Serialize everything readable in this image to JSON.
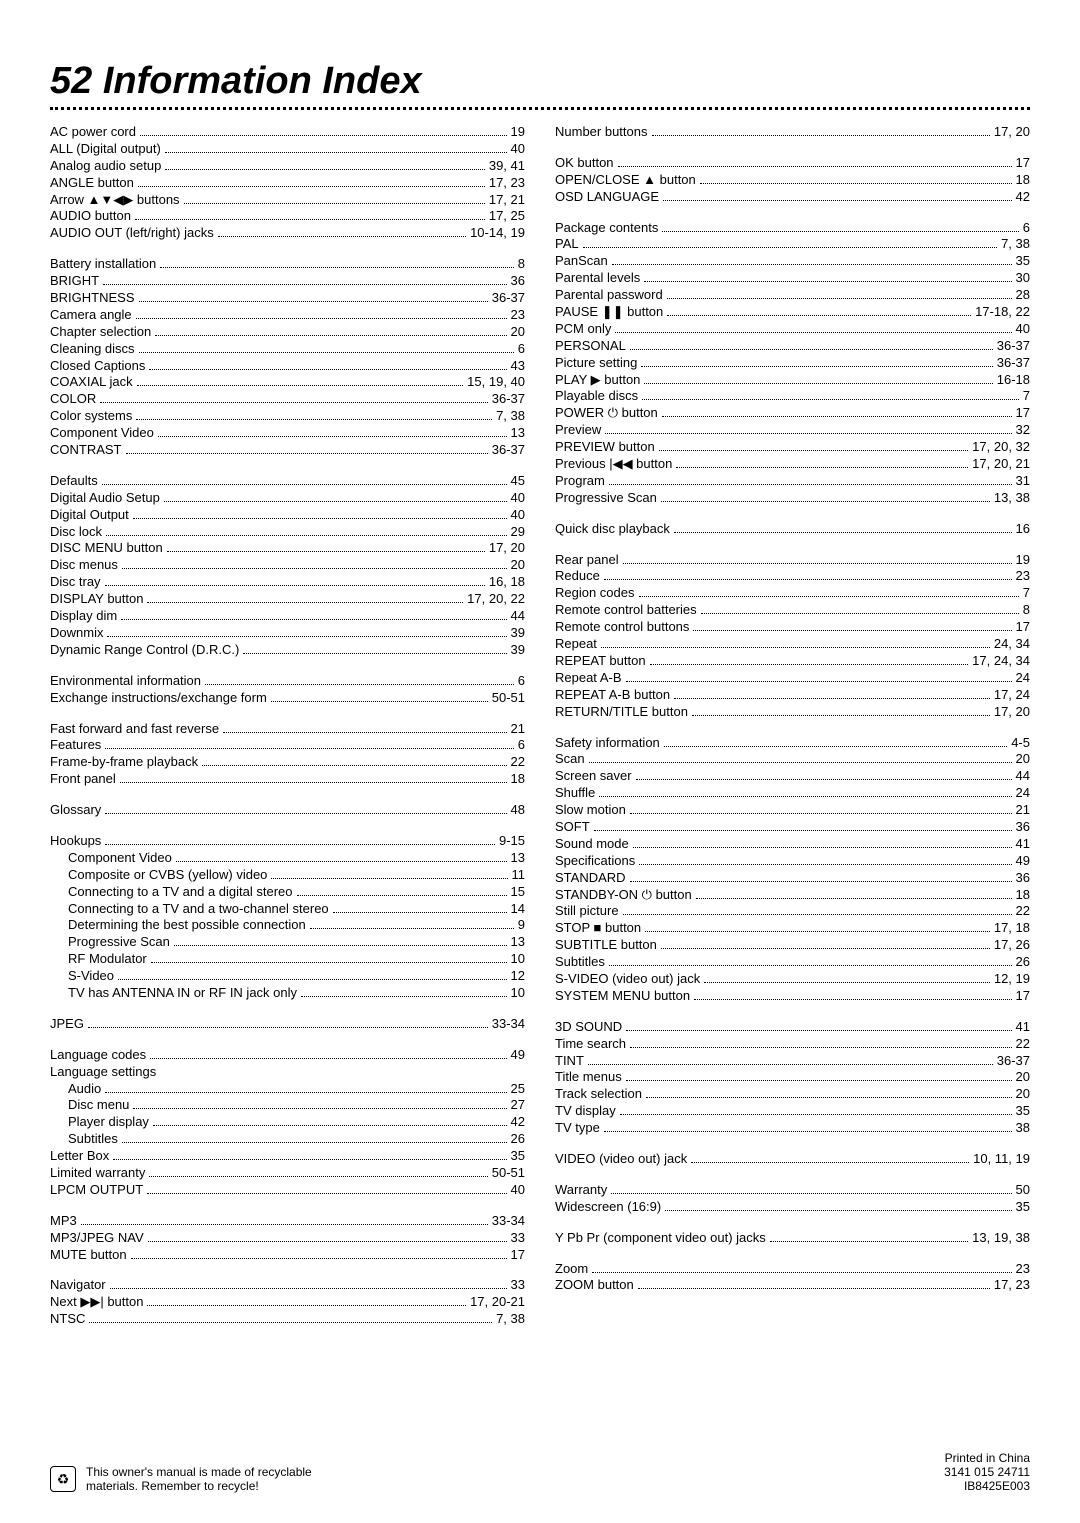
{
  "title": "52  Information Index",
  "columns": [
    [
      {
        "type": "entry",
        "label": "AC power cord",
        "page": "19"
      },
      {
        "type": "entry",
        "label": "ALL (Digital output)",
        "page": "40"
      },
      {
        "type": "entry",
        "label": "Analog audio setup",
        "page": "39, 41"
      },
      {
        "type": "entry",
        "label": "ANGLE button",
        "page": "17, 23"
      },
      {
        "type": "entry",
        "label": "Arrow ▲▼◀▶ buttons",
        "page": "17, 21"
      },
      {
        "type": "entry",
        "label": "AUDIO button",
        "page": "17, 25"
      },
      {
        "type": "entry",
        "label": "AUDIO OUT (left/right) jacks",
        "page": "10-14, 19"
      },
      {
        "type": "gap"
      },
      {
        "type": "entry",
        "label": "Battery installation",
        "page": "8"
      },
      {
        "type": "entry",
        "label": "BRIGHT",
        "page": "36"
      },
      {
        "type": "entry",
        "label": "BRIGHTNESS",
        "page": "36-37"
      },
      {
        "type": "entry",
        "label": "Camera angle",
        "page": "23"
      },
      {
        "type": "entry",
        "label": "Chapter selection",
        "page": "20"
      },
      {
        "type": "entry",
        "label": "Cleaning discs",
        "page": "6"
      },
      {
        "type": "entry",
        "label": "Closed Captions",
        "page": "43"
      },
      {
        "type": "entry",
        "label": "COAXIAL jack",
        "page": "15, 19, 40"
      },
      {
        "type": "entry",
        "label": "COLOR",
        "page": "36-37"
      },
      {
        "type": "entry",
        "label": "Color systems",
        "page": "7, 38"
      },
      {
        "type": "entry",
        "label": "Component Video",
        "page": "13"
      },
      {
        "type": "entry",
        "label": "CONTRAST",
        "page": "36-37"
      },
      {
        "type": "gap"
      },
      {
        "type": "entry",
        "label": "Defaults",
        "page": "45"
      },
      {
        "type": "entry",
        "label": "Digital Audio Setup",
        "page": "40"
      },
      {
        "type": "entry",
        "label": "Digital Output",
        "page": "40"
      },
      {
        "type": "entry",
        "label": "Disc lock",
        "page": "29"
      },
      {
        "type": "entry",
        "label": "DISC MENU button",
        "page": "17, 20"
      },
      {
        "type": "entry",
        "label": "Disc menus",
        "page": "20"
      },
      {
        "type": "entry",
        "label": "Disc tray",
        "page": "16, 18"
      },
      {
        "type": "entry",
        "label": "DISPLAY button",
        "page": "17, 20, 22"
      },
      {
        "type": "entry",
        "label": "Display dim",
        "page": "44"
      },
      {
        "type": "entry",
        "label": "Downmix",
        "page": "39"
      },
      {
        "type": "entry",
        "label": "Dynamic Range Control (D.R.C.)",
        "page": "39"
      },
      {
        "type": "gap"
      },
      {
        "type": "entry",
        "label": "Environmental information",
        "page": "6"
      },
      {
        "type": "entry",
        "label": "Exchange instructions/exchange form",
        "page": "50-51"
      },
      {
        "type": "gap"
      },
      {
        "type": "entry",
        "label": "Fast forward and fast reverse",
        "page": "21"
      },
      {
        "type": "entry",
        "label": "Features",
        "page": "6"
      },
      {
        "type": "entry",
        "label": "Frame-by-frame playback",
        "page": "22"
      },
      {
        "type": "entry",
        "label": "Front panel",
        "page": "18"
      },
      {
        "type": "gap"
      },
      {
        "type": "entry",
        "label": "Glossary",
        "page": "48"
      },
      {
        "type": "gap"
      },
      {
        "type": "entry",
        "label": "Hookups",
        "page": "9-15"
      },
      {
        "type": "entry",
        "label": "Component Video",
        "page": "13",
        "indent": true
      },
      {
        "type": "entry",
        "label": "Composite or CVBS (yellow) video",
        "page": "11",
        "indent": true
      },
      {
        "type": "entry",
        "label": "Connecting to a TV and a digital stereo",
        "page": "15",
        "indent": true
      },
      {
        "type": "entry",
        "label": "Connecting to a TV and a two-channel stereo",
        "page": "14",
        "indent": true
      },
      {
        "type": "entry",
        "label": "Determining the best possible connection",
        "page": "9",
        "indent": true
      },
      {
        "type": "entry",
        "label": "Progressive Scan",
        "page": "13",
        "indent": true
      },
      {
        "type": "entry",
        "label": "RF Modulator",
        "page": "10",
        "indent": true
      },
      {
        "type": "entry",
        "label": "S-Video",
        "page": "12",
        "indent": true
      },
      {
        "type": "entry",
        "label": "TV has ANTENNA IN or RF IN jack only",
        "page": "10",
        "indent": true
      },
      {
        "type": "gap"
      },
      {
        "type": "entry",
        "label": "JPEG",
        "page": "33-34"
      },
      {
        "type": "gap"
      },
      {
        "type": "entry",
        "label": "Language codes",
        "page": "49"
      },
      {
        "type": "head",
        "label": "Language settings"
      },
      {
        "type": "entry",
        "label": "Audio",
        "page": "25",
        "indent": true
      },
      {
        "type": "entry",
        "label": "Disc menu",
        "page": "27",
        "indent": true
      },
      {
        "type": "entry",
        "label": "Player display",
        "page": "42",
        "indent": true
      },
      {
        "type": "entry",
        "label": "Subtitles",
        "page": "26",
        "indent": true
      },
      {
        "type": "entry",
        "label": "Letter Box",
        "page": "35"
      },
      {
        "type": "entry",
        "label": "Limited warranty",
        "page": "50-51"
      },
      {
        "type": "entry",
        "label": "LPCM OUTPUT",
        "page": "40"
      },
      {
        "type": "gap"
      },
      {
        "type": "entry",
        "label": "MP3",
        "page": "33-34"
      },
      {
        "type": "entry",
        "label": "MP3/JPEG NAV",
        "page": "33"
      },
      {
        "type": "entry",
        "label": "MUTE button",
        "page": "17"
      },
      {
        "type": "gap"
      },
      {
        "type": "entry",
        "label": "Navigator",
        "page": "33"
      },
      {
        "type": "entry",
        "label": "Next ▶▶| button",
        "page": "17, 20-21"
      },
      {
        "type": "entry",
        "label": "NTSC",
        "page": "7, 38"
      }
    ],
    [
      {
        "type": "entry",
        "label": "Number buttons",
        "page": "17, 20"
      },
      {
        "type": "gap"
      },
      {
        "type": "entry",
        "label": "OK button",
        "page": "17"
      },
      {
        "type": "entry",
        "label": "OPEN/CLOSE ▲ button",
        "page": "18"
      },
      {
        "type": "entry",
        "label": "OSD LANGUAGE",
        "page": "42"
      },
      {
        "type": "gap"
      },
      {
        "type": "entry",
        "label": "Package contents",
        "page": "6"
      },
      {
        "type": "entry",
        "label": "PAL",
        "page": "7, 38"
      },
      {
        "type": "entry",
        "label": "PanScan",
        "page": "35"
      },
      {
        "type": "entry",
        "label": "Parental levels",
        "page": "30"
      },
      {
        "type": "entry",
        "label": "Parental password",
        "page": "28"
      },
      {
        "type": "entry",
        "label": "PAUSE ❚❚ button",
        "page": "17-18, 22"
      },
      {
        "type": "entry",
        "label": "PCM only",
        "page": "40"
      },
      {
        "type": "entry",
        "label": "PERSONAL",
        "page": "36-37"
      },
      {
        "type": "entry",
        "label": "Picture setting",
        "page": "36-37"
      },
      {
        "type": "entry",
        "label": "PLAY ▶ button",
        "page": "16-18"
      },
      {
        "type": "entry",
        "label": "Playable discs",
        "page": "7"
      },
      {
        "type": "entry",
        "label": "POWER ⏻ button",
        "page": "17"
      },
      {
        "type": "entry",
        "label": "Preview",
        "page": "32"
      },
      {
        "type": "entry",
        "label": "PREVIEW button",
        "page": "17, 20, 32"
      },
      {
        "type": "entry",
        "label": "Previous |◀◀ button",
        "page": "17, 20, 21"
      },
      {
        "type": "entry",
        "label": "Program",
        "page": "31"
      },
      {
        "type": "entry",
        "label": "Progressive Scan",
        "page": "13, 38"
      },
      {
        "type": "gap"
      },
      {
        "type": "entry",
        "label": "Quick disc playback",
        "page": "16"
      },
      {
        "type": "gap"
      },
      {
        "type": "entry",
        "label": "Rear panel",
        "page": "19"
      },
      {
        "type": "entry",
        "label": "Reduce",
        "page": "23"
      },
      {
        "type": "entry",
        "label": "Region codes",
        "page": "7"
      },
      {
        "type": "entry",
        "label": "Remote control batteries",
        "page": "8"
      },
      {
        "type": "entry",
        "label": "Remote control buttons",
        "page": "17"
      },
      {
        "type": "entry",
        "label": "Repeat",
        "page": "24, 34"
      },
      {
        "type": "entry",
        "label": "REPEAT button",
        "page": "17, 24, 34"
      },
      {
        "type": "entry",
        "label": "Repeat A-B",
        "page": "24"
      },
      {
        "type": "entry",
        "label": "REPEAT A-B button",
        "page": "17, 24"
      },
      {
        "type": "entry",
        "label": "RETURN/TITLE button",
        "page": "17, 20"
      },
      {
        "type": "gap"
      },
      {
        "type": "entry",
        "label": "Safety information",
        "page": "4-5"
      },
      {
        "type": "entry",
        "label": "Scan",
        "page": "20"
      },
      {
        "type": "entry",
        "label": "Screen saver",
        "page": "44"
      },
      {
        "type": "entry",
        "label": "Shuffle",
        "page": "24"
      },
      {
        "type": "entry",
        "label": "Slow motion",
        "page": "21"
      },
      {
        "type": "entry",
        "label": "SOFT",
        "page": "36"
      },
      {
        "type": "entry",
        "label": "Sound mode",
        "page": "41"
      },
      {
        "type": "entry",
        "label": "Specifications",
        "page": "49"
      },
      {
        "type": "entry",
        "label": "STANDARD",
        "page": "36"
      },
      {
        "type": "entry",
        "label": "STANDBY-ON ⏻ button",
        "page": "18"
      },
      {
        "type": "entry",
        "label": "Still picture",
        "page": "22"
      },
      {
        "type": "entry",
        "label": "STOP ■ button",
        "page": "17, 18"
      },
      {
        "type": "entry",
        "label": "SUBTITLE button",
        "page": "17, 26"
      },
      {
        "type": "entry",
        "label": "Subtitles",
        "page": "26"
      },
      {
        "type": "entry",
        "label": "S-VIDEO (video out) jack",
        "page": "12, 19"
      },
      {
        "type": "entry",
        "label": "SYSTEM MENU button",
        "page": "17"
      },
      {
        "type": "gap"
      },
      {
        "type": "entry",
        "label": "3D SOUND",
        "page": "41"
      },
      {
        "type": "entry",
        "label": "Time search",
        "page": "22"
      },
      {
        "type": "entry",
        "label": "TINT",
        "page": "36-37"
      },
      {
        "type": "entry",
        "label": "Title menus",
        "page": "20"
      },
      {
        "type": "entry",
        "label": "Track selection",
        "page": "20"
      },
      {
        "type": "entry",
        "label": "TV display",
        "page": "35"
      },
      {
        "type": "entry",
        "label": "TV type",
        "page": "38"
      },
      {
        "type": "gap"
      },
      {
        "type": "entry",
        "label": "VIDEO (video out) jack",
        "page": "10, 11, 19"
      },
      {
        "type": "gap"
      },
      {
        "type": "entry",
        "label": "Warranty",
        "page": "50"
      },
      {
        "type": "entry",
        "label": "Widescreen (16:9)",
        "page": "35"
      },
      {
        "type": "gap"
      },
      {
        "type": "entry",
        "label": "Y Pb Pr (component video out) jacks",
        "page": "13, 19, 38"
      },
      {
        "type": "gap"
      },
      {
        "type": "entry",
        "label": "Zoom",
        "page": "23"
      },
      {
        "type": "entry",
        "label": "ZOOM button",
        "page": "17, 23"
      }
    ]
  ],
  "footer": {
    "recycle_line1": "This owner's manual is made of recyclable",
    "recycle_line2": "materials. Remember to recycle!",
    "printed": "Printed in China",
    "code1": "3141 015 24711",
    "code2": "IB8425E003",
    "recycle_glyph": "♻"
  }
}
